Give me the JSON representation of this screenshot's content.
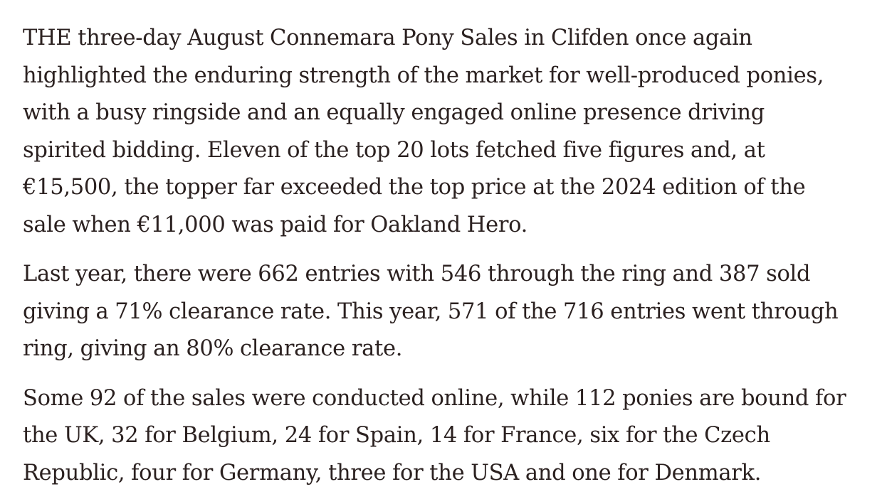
{
  "article": {
    "paragraphs": [
      {
        "lines": [
          "THE three-day August Connemara Pony Sales in Clifden once again",
          "highlighted the enduring strength of the market for well-produced ponies,",
          "with a busy ringside and an equally engaged online presence driving",
          "spirited bidding. Eleven of the top 20 lots fetched five figures and, at",
          "€15,500, the topper far exceeded the top price at the 2024 edition of the",
          "sale when €11,000 was paid for Oakland Hero."
        ]
      },
      {
        "lines": [
          "Last year, there were 662 entries with 546 through the ring and 387 sold",
          "giving a 71% clearance rate. This year, 571 of the 716 entries went through",
          "ring, giving an 80% clearance rate."
        ]
      },
      {
        "lines": [
          "Some 92 of the sales were conducted online, while 112 ponies are bound for",
          "the UK, 32 for Belgium, 24 for Spain, 14 for France, six for the Czech",
          "Republic, four for Germany, three for the USA and one for Denmark."
        ]
      }
    ]
  },
  "colors": {
    "text": "#2b2120",
    "background": "#ffffff"
  }
}
